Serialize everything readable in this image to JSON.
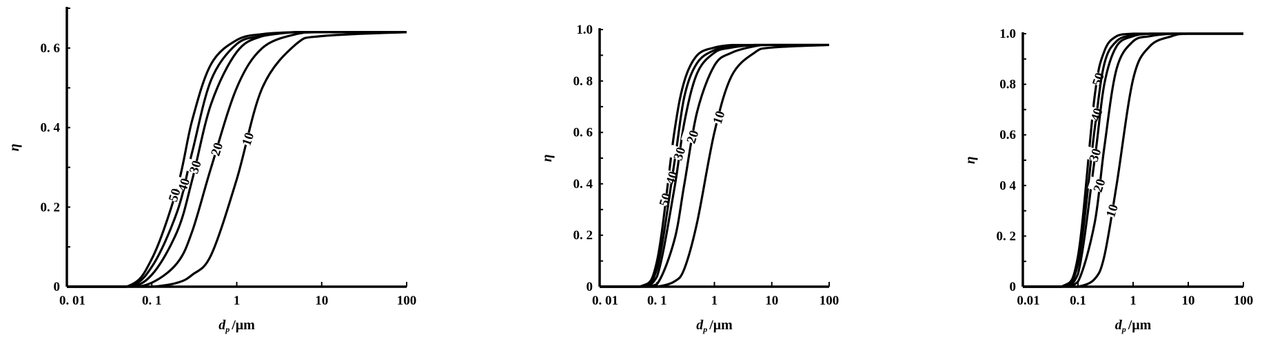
{
  "chart_data": [
    {
      "type": "line",
      "xscale": "log",
      "xlim": [
        0.01,
        100
      ],
      "ylim": [
        0,
        0.7
      ],
      "xticks": [
        0.01,
        0.1,
        1,
        10,
        100
      ],
      "xtick_labels": [
        "0. 01",
        "0. 1",
        "1",
        "10",
        "100"
      ],
      "yticks": [
        0,
        0.2,
        0.4,
        0.6
      ],
      "ytick_labels": [
        "0",
        "0. 2",
        "0. 4",
        "0. 6"
      ],
      "xlabel": "d",
      "xlabel_sub": "p",
      "xlabel_unit": "/μm",
      "ylabel": "η",
      "grid": false,
      "x": [
        0.01,
        0.05,
        0.1,
        0.2,
        0.3,
        0.5,
        1,
        2,
        5,
        10,
        100
      ],
      "series": [
        {
          "name": "50",
          "values": [
            0,
            0,
            0.07,
            0.25,
            0.42,
            0.56,
            0.62,
            0.635,
            0.64,
            0.64,
            0.64
          ]
        },
        {
          "name": "40",
          "values": [
            0,
            0,
            0.05,
            0.19,
            0.34,
            0.52,
            0.61,
            0.63,
            0.64,
            0.64,
            0.64
          ]
        },
        {
          "name": "30",
          "values": [
            0,
            0,
            0.03,
            0.14,
            0.27,
            0.46,
            0.59,
            0.63,
            0.64,
            0.64,
            0.64
          ]
        },
        {
          "name": "20",
          "values": [
            0,
            0,
            0.01,
            0.06,
            0.14,
            0.3,
            0.5,
            0.6,
            0.635,
            0.64,
            0.64
          ]
        },
        {
          "name": "10",
          "values": [
            0,
            0,
            0,
            0.01,
            0.03,
            0.08,
            0.27,
            0.5,
            0.61,
            0.63,
            0.64
          ]
        }
      ]
    },
    {
      "type": "line",
      "xscale": "log",
      "xlim": [
        0.01,
        100
      ],
      "ylim": [
        0,
        1.0
      ],
      "xticks": [
        0.01,
        0.1,
        1,
        10,
        100
      ],
      "xtick_labels": [
        "0. 01",
        "0. 1",
        "1",
        "10",
        "100"
      ],
      "yticks": [
        0,
        0.2,
        0.4,
        0.6,
        0.8,
        1.0
      ],
      "ytick_labels": [
        "0",
        "0. 2",
        "0. 4",
        "0. 6",
        "0. 8",
        "1.0"
      ],
      "xlabel": "d",
      "xlabel_sub": "p",
      "xlabel_unit": "/μm",
      "ylabel": "η",
      "grid": false,
      "x": [
        0.01,
        0.05,
        0.1,
        0.2,
        0.3,
        0.5,
        1,
        2,
        5,
        10,
        100
      ],
      "series": [
        {
          "name": "50",
          "values": [
            0,
            0,
            0.1,
            0.6,
            0.8,
            0.9,
            0.93,
            0.94,
            0.94,
            0.94,
            0.94
          ]
        },
        {
          "name": "40",
          "values": [
            0,
            0,
            0.07,
            0.48,
            0.74,
            0.87,
            0.92,
            0.935,
            0.94,
            0.94,
            0.94
          ]
        },
        {
          "name": "30",
          "values": [
            0,
            0,
            0.04,
            0.38,
            0.64,
            0.83,
            0.91,
            0.93,
            0.94,
            0.94,
            0.94
          ]
        },
        {
          "name": "20",
          "values": [
            0,
            0,
            0.01,
            0.18,
            0.4,
            0.68,
            0.86,
            0.91,
            0.935,
            0.94,
            0.94
          ]
        },
        {
          "name": "10",
          "values": [
            0,
            0,
            0,
            0.02,
            0.07,
            0.25,
            0.6,
            0.82,
            0.91,
            0.93,
            0.94
          ]
        }
      ]
    },
    {
      "type": "line",
      "xscale": "log",
      "xlim": [
        0.01,
        100
      ],
      "ylim": [
        0,
        1.0
      ],
      "xticks": [
        0.01,
        0.1,
        1,
        10,
        100
      ],
      "xtick_labels": [
        "0.01",
        "0.1",
        "1",
        "10",
        "100"
      ],
      "yticks": [
        0,
        0.2,
        0.4,
        0.6,
        0.8,
        1.0
      ],
      "ytick_labels": [
        "0",
        "0. 2",
        "0 4",
        "0.6",
        "0.8",
        "1.0"
      ],
      "xlabel": "d",
      "xlabel_sub": "p",
      "xlabel_unit": "/μm",
      "ylabel": "η",
      "grid": false,
      "x": [
        0.01,
        0.05,
        0.1,
        0.2,
        0.3,
        0.5,
        1,
        2,
        5,
        10,
        100
      ],
      "series": [
        {
          "name": "50",
          "values": [
            0,
            0,
            0.12,
            0.75,
            0.93,
            0.99,
            1,
            1,
            1,
            1,
            1
          ]
        },
        {
          "name": "40",
          "values": [
            0,
            0,
            0.09,
            0.62,
            0.88,
            0.97,
            0.995,
            1,
            1,
            1,
            1
          ]
        },
        {
          "name": "30",
          "values": [
            0,
            0,
            0.05,
            0.5,
            0.8,
            0.95,
            0.99,
            1,
            1,
            1,
            1
          ]
        },
        {
          "name": "20",
          "values": [
            0,
            0,
            0.02,
            0.25,
            0.55,
            0.86,
            0.97,
            0.99,
            1,
            1,
            1
          ]
        },
        {
          "name": "10",
          "values": [
            0,
            0,
            0,
            0.03,
            0.12,
            0.4,
            0.82,
            0.95,
            0.99,
            1,
            1
          ]
        }
      ]
    }
  ]
}
